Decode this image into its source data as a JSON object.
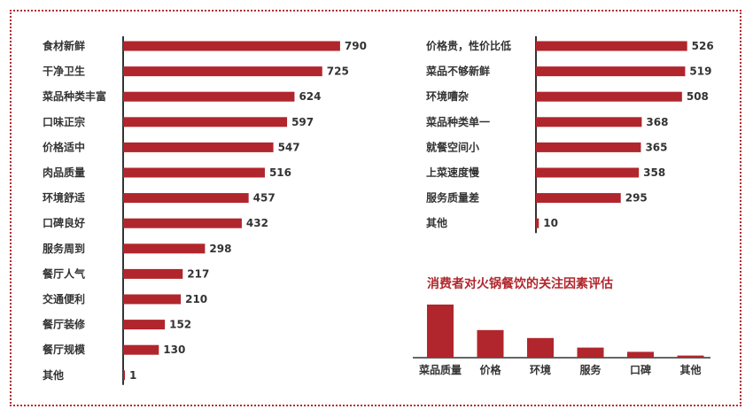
{
  "colors": {
    "bar": "#b0262c",
    "axis": "#333333",
    "title": "#b0262c",
    "border": "#b22b30"
  },
  "chart_data": [
    {
      "type": "bar",
      "orientation": "horizontal",
      "categories": [
        "食材新鲜",
        "干净卫生",
        "菜品种类丰富",
        "口味正宗",
        "价格适中",
        "肉品质量",
        "环境舒适",
        "口碑良好",
        "服务周到",
        "餐厅人气",
        "交通便利",
        "餐厅装修",
        "餐厅规模",
        "其他"
      ],
      "values": [
        790,
        725,
        624,
        597,
        547,
        516,
        457,
        432,
        298,
        217,
        210,
        152,
        130,
        1
      ]
    },
    {
      "type": "bar",
      "orientation": "horizontal",
      "categories": [
        "价格贵，性价比低",
        "菜品不够新鲜",
        "环境嘈杂",
        "菜品种类单一",
        "就餐空间小",
        "上菜速度慢",
        "服务质量差",
        "其他"
      ],
      "values": [
        526,
        519,
        508,
        368,
        365,
        358,
        295,
        10
      ]
    },
    {
      "type": "bar",
      "orientation": "vertical",
      "title": "消费者对火锅餐饮的关注因素评估",
      "categories": [
        "菜品质量",
        "价格",
        "环境",
        "服务",
        "口碑",
        "其他"
      ],
      "values": [
        100,
        52,
        37,
        19,
        11,
        4
      ],
      "ylim": [
        0,
        100
      ]
    }
  ]
}
